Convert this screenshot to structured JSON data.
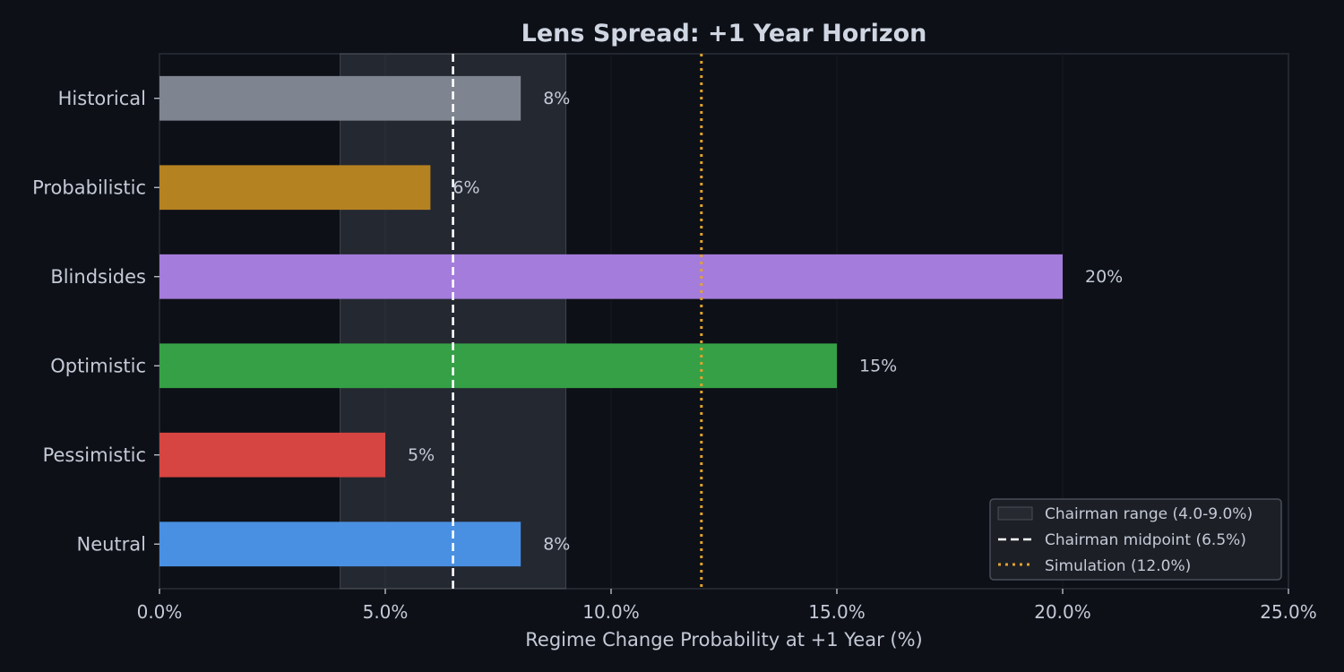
{
  "chart_data": {
    "type": "bar",
    "orientation": "horizontal",
    "title": "Lens Spread: +1 Year Horizon",
    "xlabel": "Regime Change Probability at +1 Year (%)",
    "ylabel": "",
    "xlim": [
      0,
      25
    ],
    "xticks": [
      0,
      5,
      10,
      15,
      20,
      25
    ],
    "xtick_labels": [
      "0.0%",
      "5.0%",
      "10.0%",
      "15.0%",
      "20.0%",
      "25.0%"
    ],
    "grid": "vertical",
    "categories": [
      "Historical",
      "Probabilistic",
      "Blindsides",
      "Optimistic",
      "Pessimistic",
      "Neutral"
    ],
    "values": [
      8,
      6,
      20,
      15,
      5,
      8
    ],
    "value_labels": [
      "8%",
      "6%",
      "20%",
      "15%",
      "5%",
      "8%"
    ],
    "colors": [
      "#7f8590",
      "#b58222",
      "#a47cdc",
      "#36a047",
      "#d64541",
      "#4a90e2"
    ],
    "reference": {
      "range": {
        "min": 4.0,
        "max": 9.0,
        "label": "Chairman range (4.0-9.0%)",
        "color": "#262930"
      },
      "midpoint": {
        "value": 6.5,
        "label": "Chairman midpoint (6.5%)",
        "color": "#ffffff"
      },
      "simulation": {
        "value": 12.0,
        "label": "Simulation (12.0%)",
        "color": "#e3a22b"
      }
    },
    "legend_position": "bottom-right"
  }
}
